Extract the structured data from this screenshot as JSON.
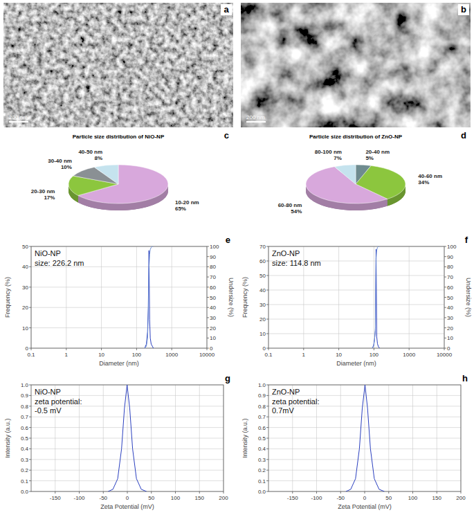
{
  "images": [
    {
      "panel_label": "a",
      "scale_bar": "200 nm"
    },
    {
      "panel_label": "b",
      "scale_bar": "200 nm"
    }
  ],
  "chart_data": [
    {
      "type": "pie",
      "panel_label": "c",
      "title": "Particle size distribution of NiO-NP",
      "categories": [
        "10-20 nm",
        "20-30 nm",
        "30-40 nm",
        "40-50 nm"
      ],
      "values": [
        65,
        17,
        10,
        8
      ],
      "value_labels": [
        "65%",
        "17%",
        "10%",
        "8%"
      ],
      "colors": [
        "#d8a8dc",
        "#8cc63e",
        "#8a9094",
        "#c5e3ee"
      ],
      "data_labels": true
    },
    {
      "type": "pie",
      "panel_label": "d",
      "title": "Particle size distribution of ZnO-NP",
      "categories": [
        "20-40 nm",
        "40-60 nm",
        "60-80 nm",
        "80-100 nm"
      ],
      "values": [
        5,
        34,
        54,
        7
      ],
      "value_labels": [
        "5%",
        "34%",
        "54%",
        "7%"
      ],
      "colors": [
        "#6e8b8f",
        "#8cc63e",
        "#d8a8dc",
        "#c5e3ee"
      ],
      "data_labels": true
    },
    {
      "type": "line",
      "panel_label": "e",
      "annotations": [
        "NiO-NP",
        "size: 226.2 nm"
      ],
      "x_label": "Diameter (nm)",
      "y_label": "Frequency (%)",
      "y2_label": "Undersize (%)",
      "log": "x",
      "grid": true,
      "xlim": [
        0.1,
        10000
      ],
      "xticks": [
        0.1,
        1,
        10,
        100,
        1000,
        10000
      ],
      "ylim": [
        0,
        50
      ],
      "yticks": [
        0,
        10,
        20,
        30,
        40,
        50
      ],
      "y2lim": [
        0,
        100
      ],
      "y2ticks": [
        0,
        10,
        20,
        30,
        40,
        50,
        60,
        70,
        80,
        90,
        100
      ],
      "x": [
        170,
        190,
        205,
        215,
        225,
        235,
        245,
        260,
        280,
        300
      ],
      "series": [
        {
          "color": "#2a3fbf",
          "values": [
            0,
            2,
            8,
            20,
            48,
            14,
            5,
            2,
            1,
            0
          ]
        },
        {
          "color": "#6f8fd6",
          "axis": "y2",
          "values": [
            0,
            2,
            10,
            30,
            78,
            92,
            97,
            99,
            100,
            100
          ]
        }
      ]
    },
    {
      "type": "line",
      "panel_label": "f",
      "annotations": [
        "ZnO-NP",
        "size: 114.8 nm"
      ],
      "x_label": "Diameter (nm)",
      "y_label": "Frequency (%)",
      "y2_label": "Undersize (%)",
      "log": "x",
      "grid": true,
      "xlim": [
        0.1,
        10000
      ],
      "xticks": [
        0.1,
        1,
        10,
        100,
        1000,
        10000
      ],
      "ylim": [
        0,
        70
      ],
      "yticks": [
        0,
        10,
        20,
        30,
        40,
        50,
        60,
        70
      ],
      "y2lim": [
        0,
        100
      ],
      "y2ticks": [
        0,
        10,
        20,
        30,
        40,
        50,
        60,
        70,
        80,
        90,
        100
      ],
      "x": [
        90,
        98,
        104,
        110,
        115,
        120,
        126,
        134,
        145
      ],
      "series": [
        {
          "color": "#2a3fbf",
          "values": [
            0,
            2,
            6,
            12,
            68,
            8,
            3,
            1,
            0
          ]
        },
        {
          "color": "#6f8fd6",
          "axis": "y2",
          "values": [
            0,
            2,
            8,
            20,
            88,
            96,
            99,
            100,
            100
          ]
        }
      ]
    },
    {
      "type": "line",
      "panel_label": "g",
      "annotations": [
        "NiO-NP",
        "zeta potential: -0.5 mV"
      ],
      "x_label": "Zeta Potential (mV)",
      "y_label": "Intensity (a.u.)",
      "grid": true,
      "xlim": [
        -200,
        200
      ],
      "xticks": [
        -150,
        -100,
        -50,
        0,
        50,
        100,
        150,
        200
      ],
      "ylim": [
        0,
        1
      ],
      "yticks": [
        {
          "value": 0,
          "label": "0.0"
        },
        0.1,
        0.2,
        0.3,
        0.4,
        0.5,
        0.6,
        0.7,
        0.8,
        0.9,
        {
          "value": 1,
          "label": "1.0"
        }
      ],
      "x": [
        -40,
        -30,
        -20,
        -12,
        -6,
        -0.5,
        5,
        11,
        19,
        29,
        40
      ],
      "series": [
        {
          "color": "#2a3fbf",
          "values": [
            0,
            0.02,
            0.12,
            0.4,
            0.78,
            1,
            0.78,
            0.4,
            0.12,
            0.02,
            0
          ]
        }
      ]
    },
    {
      "type": "line",
      "panel_label": "h",
      "annotations": [
        "ZnO-NP",
        "zeta potential: 0.7mV"
      ],
      "x_label": "Zeta Potential (mV)",
      "y_label": "Intensity (a.u.)",
      "grid": true,
      "xlim": [
        -200,
        200
      ],
      "xticks": [
        -150,
        -100,
        -50,
        0,
        50,
        100,
        150,
        200
      ],
      "ylim": [
        0,
        1
      ],
      "yticks": [
        {
          "value": 0,
          "label": "0.0"
        },
        0.1,
        0.2,
        0.3,
        0.4,
        0.5,
        0.6,
        0.7,
        0.8,
        0.9,
        {
          "value": 1,
          "label": "1.0"
        }
      ],
      "x": [
        -39,
        -29,
        -19,
        -11,
        -5,
        0.7,
        6,
        12,
        20,
        30,
        41
      ],
      "series": [
        {
          "color": "#2a3fbf",
          "values": [
            0,
            0.02,
            0.12,
            0.4,
            0.78,
            1,
            0.78,
            0.4,
            0.12,
            0.02,
            0
          ]
        }
      ]
    }
  ]
}
